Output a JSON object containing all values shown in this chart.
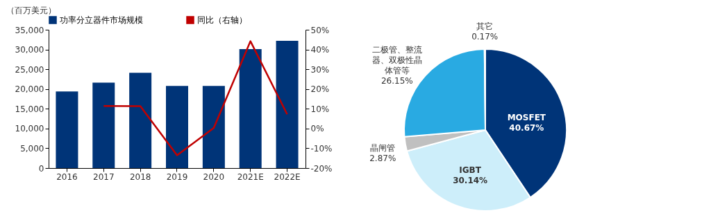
{
  "chart_data": [
    {
      "type": "bar",
      "ylabel": "（百万美元）",
      "categories": [
        "2016",
        "2017",
        "2018",
        "2019",
        "2020",
        "2021E",
        "2022E"
      ],
      "series": [
        {
          "name": "功率分立器件市场规模",
          "type": "bar",
          "color": "#003478",
          "values": [
            19400,
            21600,
            24100,
            20800,
            20800,
            30100,
            32200
          ]
        },
        {
          "name": "同比（右轴）",
          "type": "line",
          "axis": "y2",
          "color": "#c00000",
          "values": [
            null,
            11.4,
            11.3,
            -13.5,
            0.3,
            44.2,
            7.2
          ]
        }
      ],
      "ylim": [
        0,
        35000
      ],
      "yticks": [
        0,
        {
          "value": 5000,
          "label": "5,000"
        },
        {
          "value": 10000,
          "label": "10,000"
        },
        {
          "value": 15000,
          "label": "15,000"
        },
        {
          "value": 20000,
          "label": "20,000"
        },
        {
          "value": 25000,
          "label": "25,000"
        },
        {
          "value": 30000,
          "label": "30,000"
        },
        {
          "value": 35000,
          "label": "35,000"
        }
      ],
      "y2lim": [
        -20,
        50
      ],
      "y2ticks": [
        {
          "value": -20,
          "label": "-20%"
        },
        {
          "value": -10,
          "label": "-10%"
        },
        {
          "value": 0,
          "label": "0%"
        },
        {
          "value": 10,
          "label": "10%"
        },
        {
          "value": 20,
          "label": "20%"
        },
        {
          "value": 30,
          "label": "30%"
        },
        {
          "value": 40,
          "label": "40%"
        },
        {
          "value": 50,
          "label": "50%"
        }
      ],
      "legend": "top",
      "grid": false
    },
    {
      "type": "pie",
      "categories": [
        "MOSFET",
        "IGBT",
        "晶闸管",
        "二极管、整流器、双极性晶体管等",
        "其它"
      ],
      "values": [
        40.67,
        30.14,
        2.87,
        26.15,
        0.17
      ],
      "colors": [
        "#003478",
        "#cdeefa",
        "#c0c0c0",
        "#29aae2",
        "#f2f2f2"
      ],
      "value_labels": [
        "40.67%",
        "30.14%",
        "2.87%",
        "26.15%",
        "0.17%"
      ]
    }
  ]
}
